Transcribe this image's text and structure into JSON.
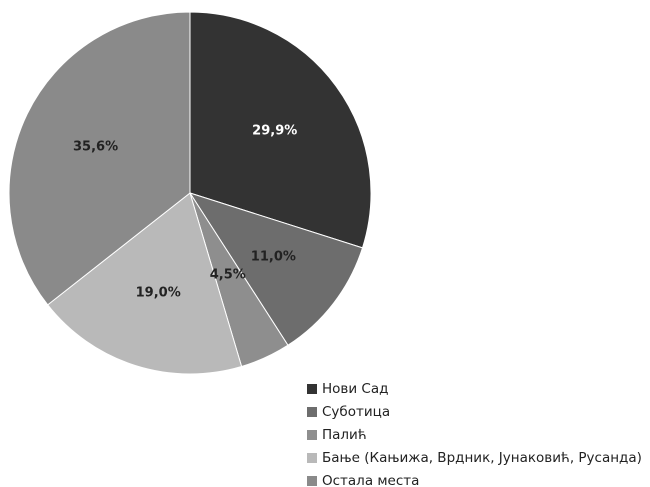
{
  "chart_data": {
    "type": "pie",
    "categories": [
      "Нови Сад",
      "Суботица",
      "Палић",
      "Бање (Кањижа, Врдник, Јунаковић, Русанда)",
      "Остала места"
    ],
    "values": [
      29.9,
      11.0,
      4.5,
      19.0,
      35.6
    ],
    "value_labels": [
      "29,9%",
      "11,0%",
      "4,5%",
      "19,0%",
      "35,6%"
    ],
    "colors": [
      "#333333",
      "#6d6d6d",
      "#8e8e8e",
      "#b9b9b9",
      "#8a8a8a"
    ],
    "legend": "bottom-right"
  }
}
